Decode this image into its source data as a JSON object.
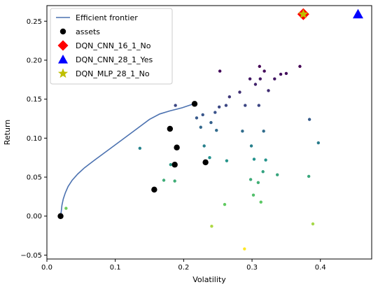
{
  "chart_data": {
    "type": "scatter",
    "title": "",
    "xlabel": "Volatility",
    "ylabel": "Return",
    "xlim": [
      0.0,
      0.475
    ],
    "ylim": [
      -0.055,
      0.27
    ],
    "x_ticks": [
      0.0,
      0.1,
      0.2,
      0.3,
      0.4
    ],
    "x_tick_labels": [
      "0.0",
      "0.1",
      "0.2",
      "0.3",
      "0.4"
    ],
    "y_ticks": [
      -0.05,
      0.0,
      0.05,
      0.1,
      0.15,
      0.2,
      0.25
    ],
    "y_tick_labels": [
      "−0.05",
      "0.00",
      "0.05",
      "0.10",
      "0.15",
      "0.20",
      "0.25"
    ],
    "grid": false,
    "legend_position": "top-left",
    "legend": [
      {
        "label": "Efficient frontier",
        "marker": "line",
        "color": "#4c72b0"
      },
      {
        "label": "assets",
        "marker": "circle",
        "color": "#000000"
      },
      {
        "label": "DQN_CNN_16_1_No",
        "marker": "diamond",
        "color": "#ff0000"
      },
      {
        "label": "DQN_CNN_28_1_Yes",
        "marker": "triangle",
        "color": "#0000ff"
      },
      {
        "label": "DQN_MLP_28_1_No",
        "marker": "star",
        "color": "#bfbf00"
      }
    ],
    "efficient_frontier": {
      "name": "Efficient frontier",
      "color": "#4c72b0",
      "x": [
        0.02,
        0.021,
        0.022,
        0.024,
        0.027,
        0.031,
        0.037,
        0.045,
        0.055,
        0.07,
        0.09,
        0.11,
        0.13,
        0.15,
        0.165,
        0.18,
        0.198,
        0.215
      ],
      "y": [
        0.0,
        0.006,
        0.014,
        0.022,
        0.03,
        0.038,
        0.046,
        0.054,
        0.062,
        0.072,
        0.085,
        0.098,
        0.111,
        0.124,
        0.131,
        0.135,
        0.139,
        0.144
      ]
    },
    "assets": {
      "name": "assets",
      "color": "#000000",
      "x": [
        0.02,
        0.157,
        0.18,
        0.187,
        0.19,
        0.216,
        0.232
      ],
      "y": [
        0.0,
        0.034,
        0.112,
        0.066,
        0.088,
        0.144,
        0.069
      ]
    },
    "portfolios": {
      "colormap": [
        "#440154",
        "#3b528b",
        "#21908d",
        "#5dc963",
        "#fde725"
      ],
      "y_range": [
        -0.042,
        0.192
      ],
      "x": [
        0.028,
        0.136,
        0.171,
        0.181,
        0.187,
        0.188,
        0.219,
        0.225,
        0.228,
        0.23,
        0.238,
        0.24,
        0.241,
        0.246,
        0.248,
        0.252,
        0.253,
        0.26,
        0.262,
        0.263,
        0.267,
        0.282,
        0.286,
        0.289,
        0.29,
        0.297,
        0.298,
        0.299,
        0.302,
        0.303,
        0.305,
        0.309,
        0.31,
        0.311,
        0.312,
        0.313,
        0.316,
        0.317,
        0.318,
        0.32,
        0.324,
        0.333,
        0.337,
        0.342,
        0.35,
        0.37,
        0.383,
        0.384,
        0.389,
        0.397
      ],
      "y": [
        0.01,
        0.087,
        0.046,
        0.066,
        0.045,
        0.142,
        0.126,
        0.114,
        0.13,
        0.09,
        0.075,
        0.12,
        -0.013,
        0.133,
        0.11,
        0.14,
        0.186,
        0.015,
        0.142,
        0.071,
        0.153,
        0.159,
        0.109,
        -0.042,
        0.142,
        0.176,
        0.047,
        0.09,
        0.027,
        0.073,
        0.169,
        0.043,
        0.142,
        0.192,
        0.176,
        0.018,
        0.057,
        0.109,
        0.186,
        0.072,
        0.161,
        0.176,
        0.053,
        0.182,
        0.183,
        0.192,
        0.051,
        0.124,
        -0.01,
        0.094
      ]
    },
    "strategies": [
      {
        "name": "DQN_CNN_16_1_No",
        "marker": "diamond",
        "color": "#ff0000",
        "x": 0.375,
        "y": 0.259
      },
      {
        "name": "DQN_CNN_28_1_Yes",
        "marker": "triangle",
        "color": "#0000ff",
        "x": 0.455,
        "y": 0.259
      },
      {
        "name": "DQN_MLP_28_1_No",
        "marker": "star",
        "color": "#bfbf00",
        "x": 0.375,
        "y": 0.259
      }
    ]
  }
}
